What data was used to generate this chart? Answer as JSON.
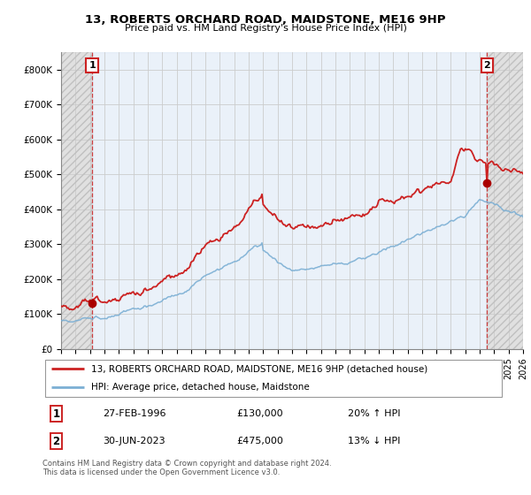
{
  "title_line1": "13, ROBERTS ORCHARD ROAD, MAIDSTONE, ME16 9HP",
  "title_line2": "Price paid vs. HM Land Registry's House Price Index (HPI)",
  "sale1_date": "27-FEB-1996",
  "sale1_price": 130000,
  "sale1_hpi_pct": "20% ↑ HPI",
  "sale2_date": "30-JUN-2023",
  "sale2_price": 475000,
  "sale2_hpi_pct": "13% ↓ HPI",
  "legend_label1": "13, ROBERTS ORCHARD ROAD, MAIDSTONE, ME16 9HP (detached house)",
  "legend_label2": "HPI: Average price, detached house, Maidstone",
  "footer": "Contains HM Land Registry data © Crown copyright and database right 2024.\nThis data is licensed under the Open Government Licence v3.0.",
  "hpi_color": "#7bafd4",
  "price_color": "#cc2222",
  "dot_color": "#aa0000",
  "ylim": [
    0,
    850000
  ],
  "yticks": [
    0,
    100000,
    200000,
    300000,
    400000,
    500000,
    600000,
    700000,
    800000
  ],
  "ytick_labels": [
    "£0",
    "£100K",
    "£200K",
    "£300K",
    "£400K",
    "£500K",
    "£600K",
    "£700K",
    "£800K"
  ],
  "xmin": 1994,
  "xmax": 2026,
  "sale1_year": 1996.15,
  "sale2_year": 2023.5
}
